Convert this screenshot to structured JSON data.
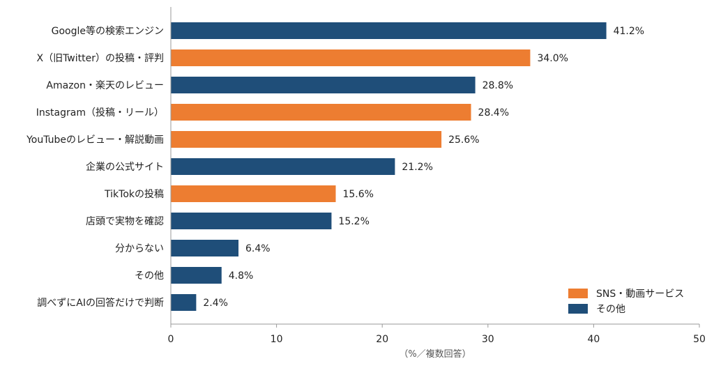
{
  "chart_data": {
    "type": "bar",
    "orientation": "horizontal",
    "categories": [
      "Google等の検索エンジン",
      "X（旧Twitter）の投稿・評判",
      "Amazon・楽天のレビュー",
      "Instagram（投稿・リール）",
      "YouTubeのレビュー・解説動画",
      "企業の公式サイト",
      "TikTokの投稿",
      "店頭で実物を確認",
      "分からない",
      "その他",
      "調べずにAIの回答だけで判断"
    ],
    "values": [
      41.2,
      34.0,
      28.8,
      28.4,
      25.6,
      21.2,
      15.6,
      15.2,
      6.4,
      4.8,
      2.4
    ],
    "value_labels": [
      "41.2%",
      "34.0%",
      "28.8%",
      "28.4%",
      "25.6%",
      "21.2%",
      "15.6%",
      "15.2%",
      "6.4%",
      "4.8%",
      "2.4%"
    ],
    "groups": [
      "other",
      "sns",
      "other",
      "sns",
      "sns",
      "other",
      "sns",
      "other",
      "other",
      "other",
      "other"
    ],
    "legend": [
      {
        "key": "sns",
        "label": "SNS・動画サービス",
        "color": "#ED7D31"
      },
      {
        "key": "other",
        "label": "その他",
        "color": "#1F4E79"
      }
    ],
    "legend_position": "bottom-right",
    "xlabel": "（%／複数回答）",
    "xlim": [
      0,
      50
    ],
    "xticks": [
      0,
      10,
      20,
      30,
      40,
      50
    ],
    "grid": false
  }
}
